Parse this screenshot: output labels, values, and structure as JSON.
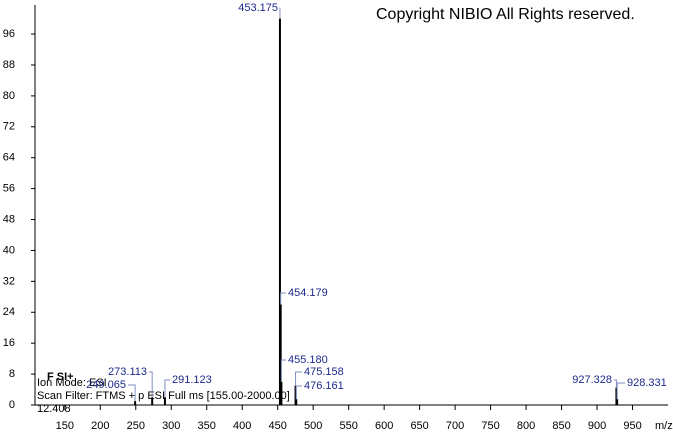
{
  "chart_data": {
    "type": "spectrum",
    "annotations": [
      "Copyright NIBIO All Rights reserved.",
      "F SI+",
      "Ion Mode: ESI",
      "Scan Filter: FTMS + p ESI Full ms [155.00-2000.00]",
      "12.408"
    ],
    "x_label": "m/z",
    "x": [
      249.065,
      273.113,
      291.123,
      453.175,
      454.179,
      455.18,
      475.158,
      476.161,
      927.328,
      928.331
    ],
    "labels": [
      "249.065",
      "273.113",
      "291.123",
      "453.175",
      "454.179",
      "455.180",
      "475.158",
      "476.161",
      "927.328",
      "928.331"
    ],
    "values": [
      1,
      2,
      2,
      100,
      26,
      6,
      5,
      1.5,
      4.5,
      1.5
    ],
    "color": "#000000",
    "xlim": [
      108,
      1000
    ],
    "xticks": [
      150,
      200,
      250,
      300,
      350,
      400,
      450,
      500,
      550,
      600,
      650,
      700,
      750,
      800,
      850,
      900,
      950
    ],
    "ylim": [
      0,
      100
    ],
    "yticks": [
      0,
      8,
      16,
      24,
      32,
      40,
      48,
      56,
      64,
      72,
      80,
      88,
      96
    ]
  }
}
